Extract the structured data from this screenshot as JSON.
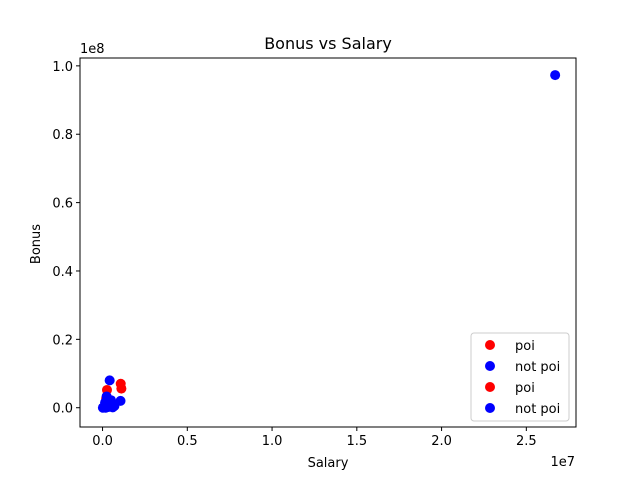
{
  "chart_data": {
    "type": "scatter",
    "title": "Bonus vs Salary",
    "xlabel": "Salary",
    "ylabel": "Bonus",
    "x_offset_label": "1e7",
    "y_offset_label": "1e8",
    "xlim": [
      -1330000,
      27930000
    ],
    "ylim": [
      -5640000,
      102300000
    ],
    "x_ticks": [
      0,
      5000000,
      10000000,
      15000000,
      20000000,
      25000000
    ],
    "x_tick_labels": [
      "0.0",
      "0.5",
      "1.0",
      "1.5",
      "2.0",
      "2.5"
    ],
    "y_ticks": [
      0,
      20000000,
      40000000,
      60000000,
      80000000,
      100000000
    ],
    "y_tick_labels": [
      "0.0",
      "0.2",
      "0.4",
      "0.6",
      "0.8",
      "1.0"
    ],
    "grid": false,
    "legend_position": "lower-right",
    "legend": [
      {
        "label": "poi",
        "color": "#ff0000"
      },
      {
        "label": "not poi",
        "color": "#0000ff"
      },
      {
        "label": "poi",
        "color": "#ff0000"
      },
      {
        "label": "not poi",
        "color": "#0000ff"
      }
    ],
    "series": [
      {
        "name": "poi",
        "color": "#ff0000",
        "points": [
          [
            1072000,
            7000000
          ],
          [
            1111000,
            5600000
          ],
          [
            262000,
            5200000
          ],
          [
            213000,
            2600000
          ],
          [
            450000,
            1000000
          ]
        ]
      },
      {
        "name": "not poi",
        "color": "#0000ff",
        "points": [
          [
            26700000,
            97300000
          ],
          [
            420000,
            8000000
          ],
          [
            240000,
            3300000
          ],
          [
            500000,
            2200000
          ],
          [
            1060000,
            2000000
          ],
          [
            150000,
            1500000
          ],
          [
            300000,
            900000
          ],
          [
            650000,
            700000
          ],
          [
            700000,
            500000
          ],
          [
            100000,
            400000
          ],
          [
            250000,
            300000
          ],
          [
            550000,
            600000
          ],
          [
            350000,
            200000
          ],
          [
            80000,
            100000
          ],
          [
            20000,
            0
          ],
          [
            180000,
            0
          ],
          [
            600000,
            100000
          ],
          [
            400000,
            1200000
          ]
        ]
      }
    ]
  }
}
